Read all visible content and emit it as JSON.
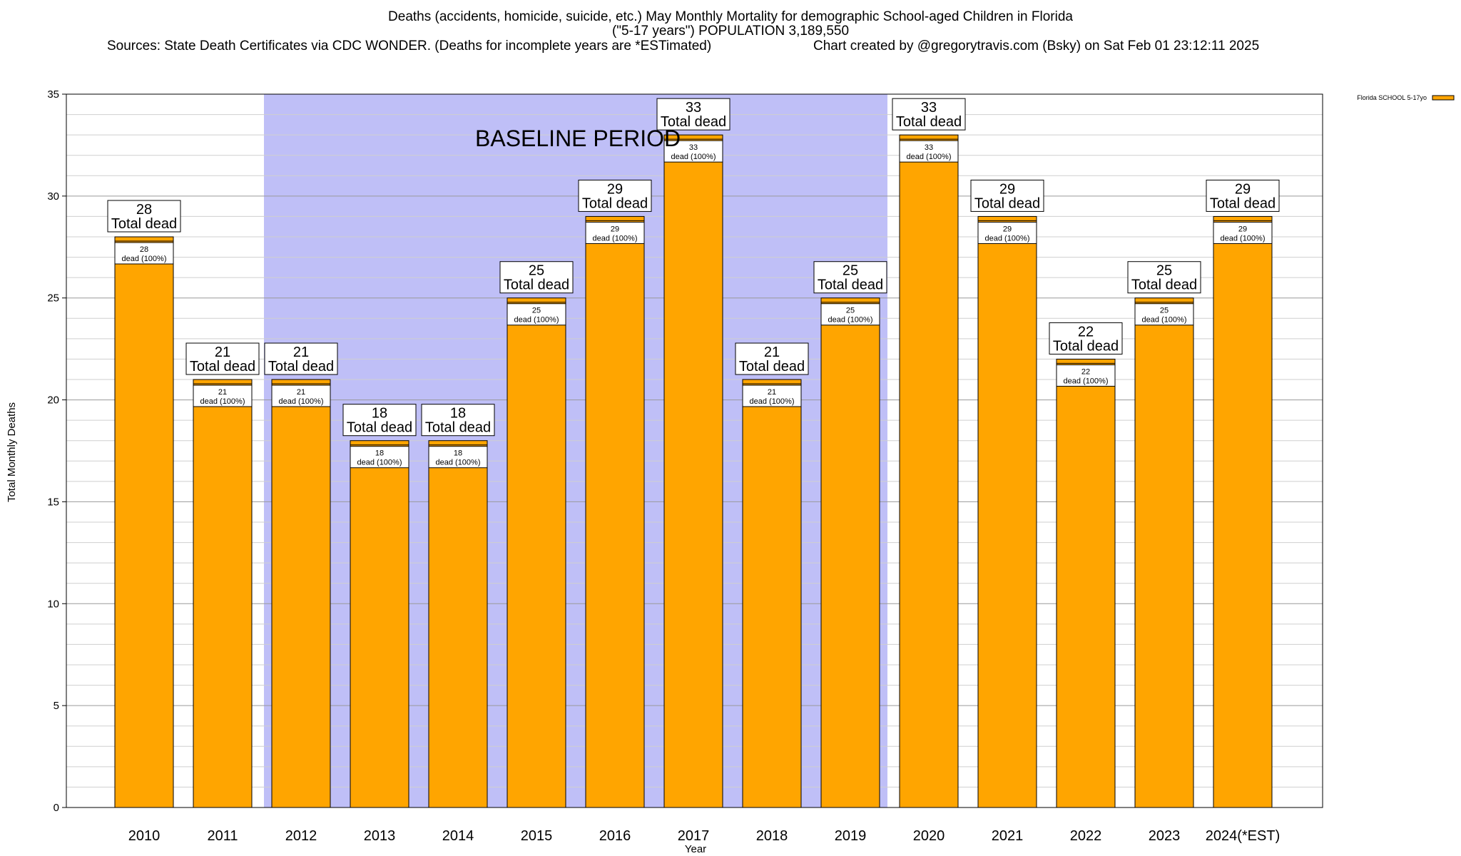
{
  "chart_data": {
    "type": "bar",
    "title": "Deaths (accidents, homicide, suicide, etc.) May Monthly Mortality for demographic School-aged Children in Florida",
    "subtitle": "(\"5-17 years\") POPULATION 3,189,550",
    "sources": "Sources: State Death Certificates via CDC WONDER. (Deaths for incomplete years are *ESTimated)",
    "credit": "Chart created by @gregorytravis.com (Bsky) on Sat Feb 01 23:12:11 2025",
    "xlabel": "Year",
    "ylabel": "Total Monthly Deaths",
    "ylim": [
      0,
      35
    ],
    "yticks": [
      0,
      5,
      10,
      15,
      20,
      25,
      30,
      35
    ],
    "categories": [
      "2010",
      "2011",
      "2012",
      "2013",
      "2014",
      "2015",
      "2016",
      "2017",
      "2018",
      "2019",
      "2020",
      "2021",
      "2022",
      "2023",
      "2024(*EST)"
    ],
    "series": [
      {
        "name": "Florida SCHOOL 5-17yo",
        "color": "#ffa500",
        "values": [
          28,
          21,
          21,
          18,
          18,
          25,
          29,
          33,
          21,
          25,
          33,
          29,
          22,
          25,
          29
        ]
      }
    ],
    "total_label": "Total dead",
    "inner_label": "dead (100%)",
    "baseline": {
      "label": "BASELINE PERIOD",
      "start_category": "2012",
      "end_category": "2019",
      "color": "#bfbff7"
    },
    "grid": true,
    "legend_position": "top-right"
  }
}
